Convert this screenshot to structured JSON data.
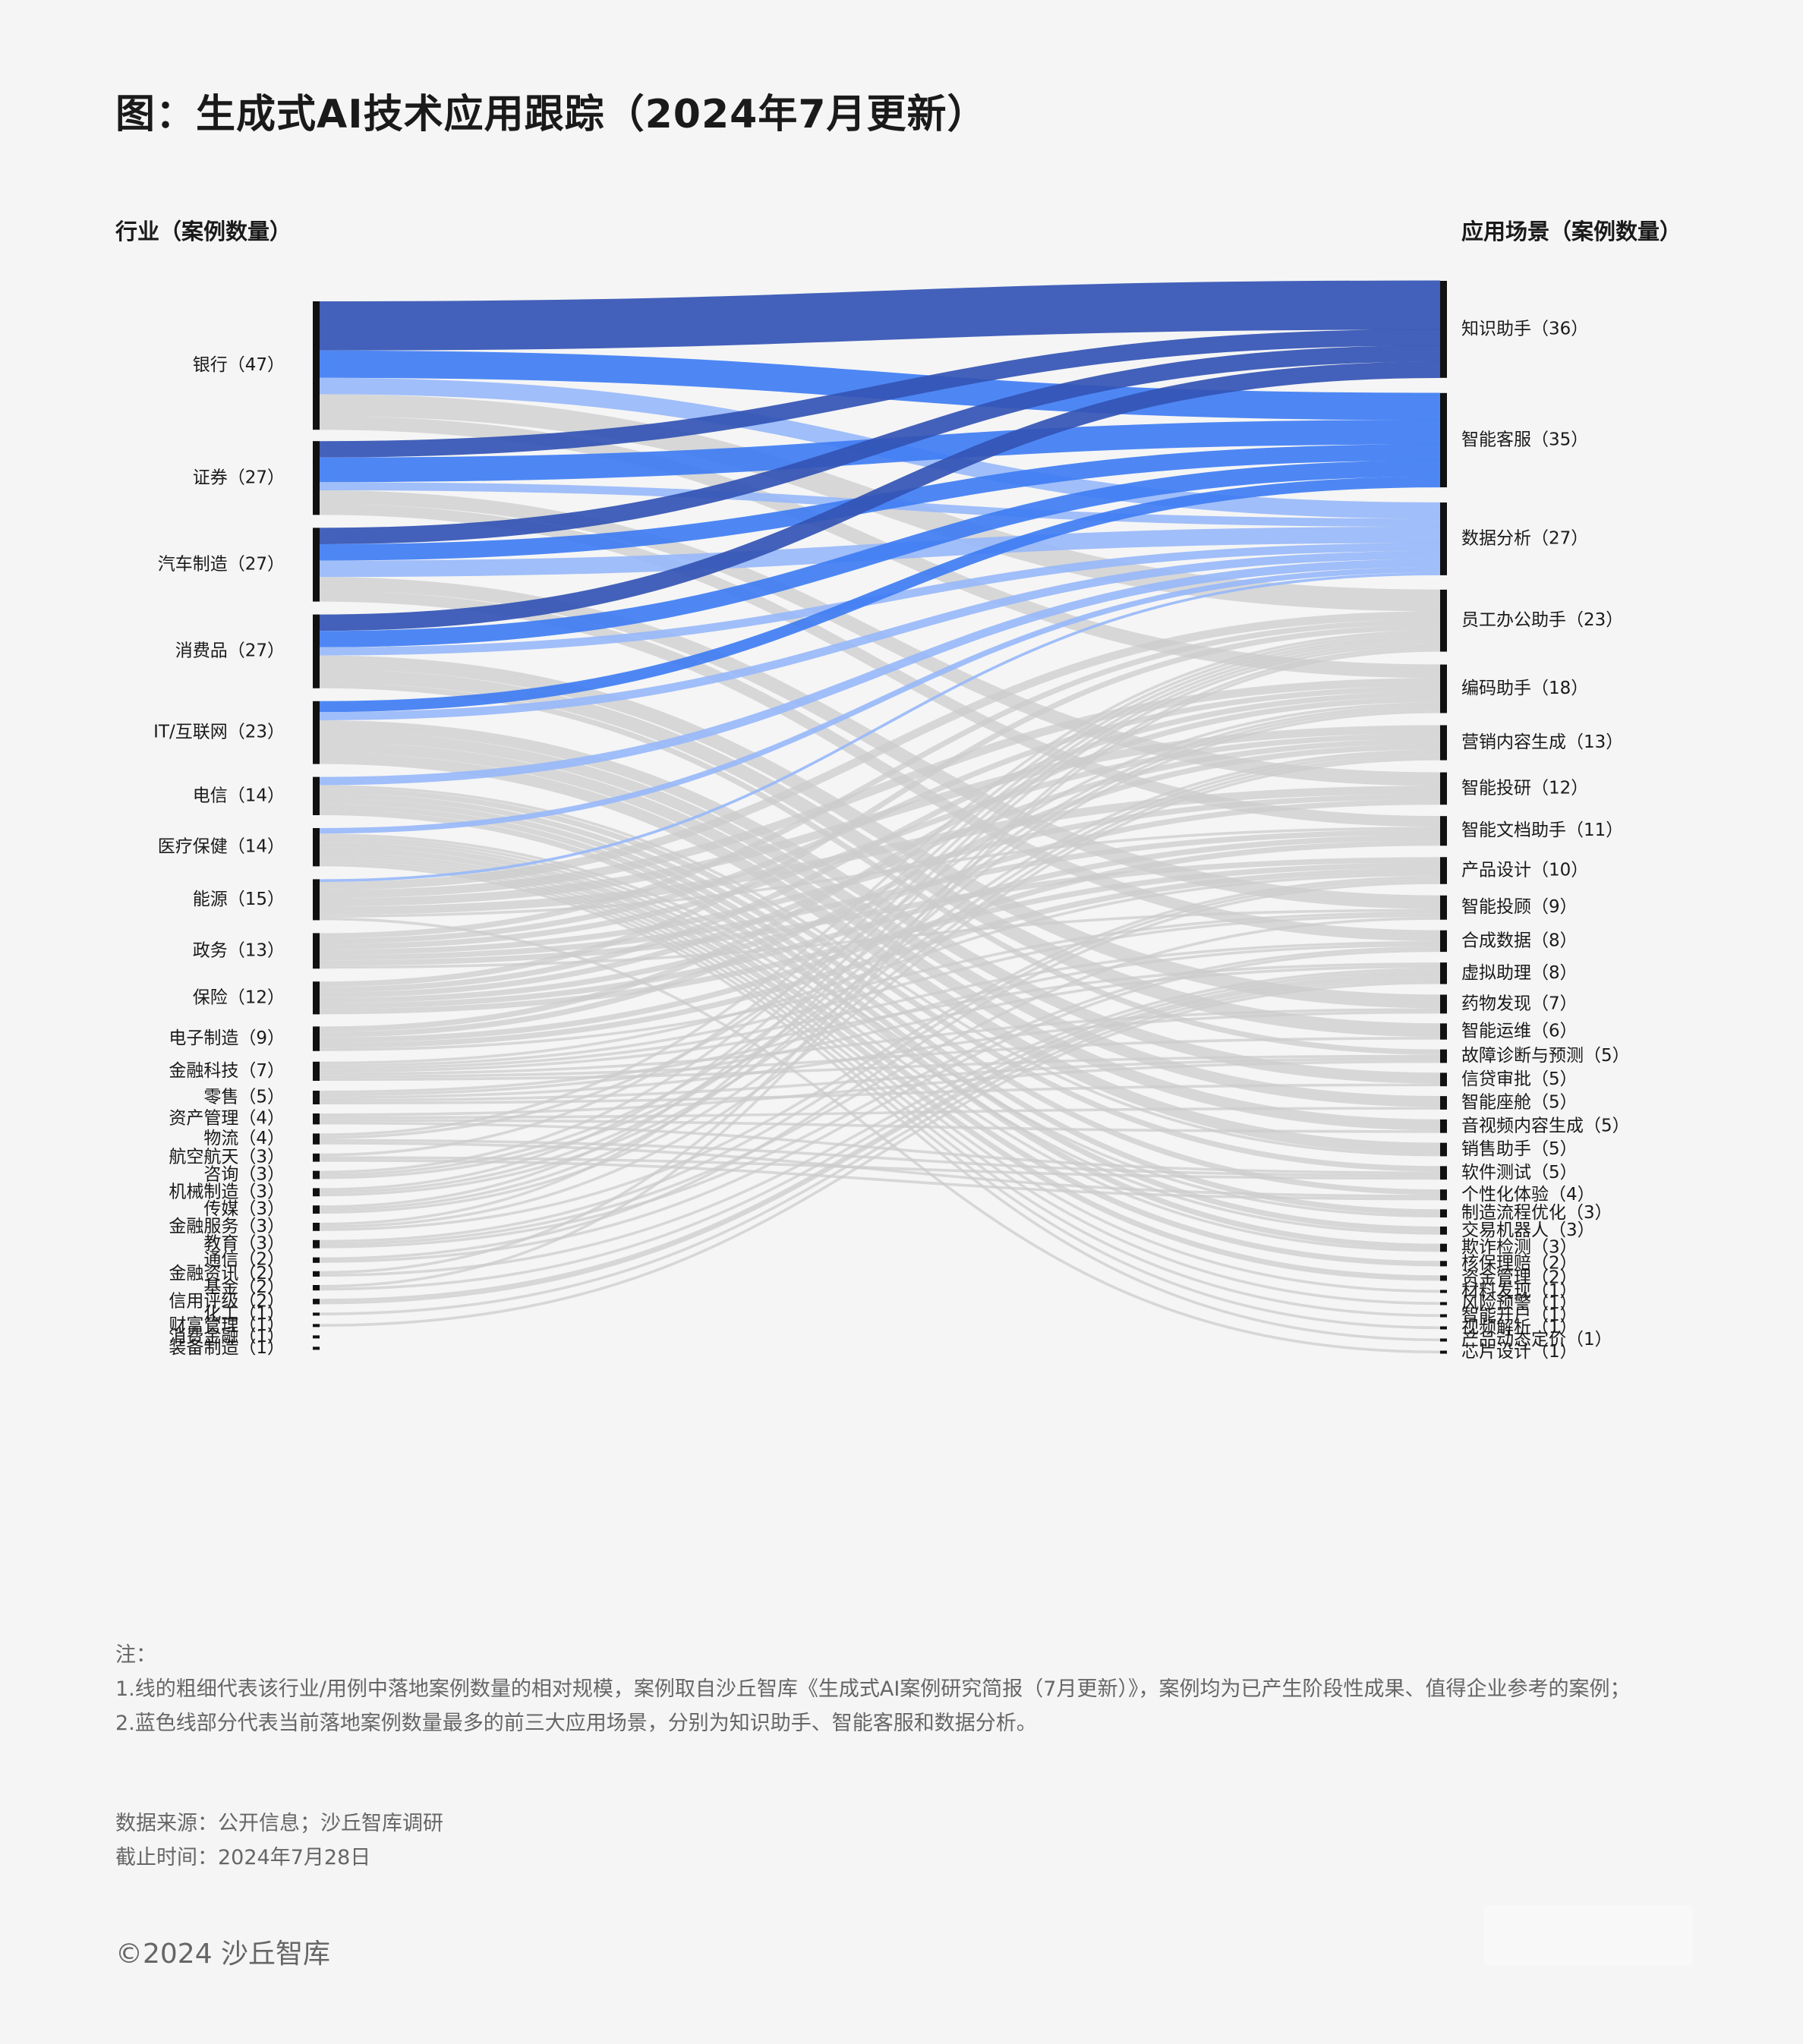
{
  "title": "图：生成式AI技术应用跟踪（2024年7月更新）",
  "left_header": "行业（案例数量）",
  "right_header": "应用场景（案例数量）",
  "chart_data": {
    "type": "sankey",
    "colors": {
      "知识助手": "#3354b4",
      "智能客服": "#3f7df3",
      "数据分析": "#98b9f8",
      "other": "#cccccc",
      "node": "#111111"
    },
    "left_nodes": [
      {
        "label": "银行（47）",
        "value": 47
      },
      {
        "label": "证券（27）",
        "value": 27
      },
      {
        "label": "汽车制造（27）",
        "value": 27
      },
      {
        "label": "消费品（27）",
        "value": 27
      },
      {
        "label": "IT/互联网（23）",
        "value": 23
      },
      {
        "label": "电信（14）",
        "value": 14
      },
      {
        "label": "医疗保健（14）",
        "value": 14
      },
      {
        "label": "能源（15）",
        "value": 15
      },
      {
        "label": "政务（13）",
        "value": 13
      },
      {
        "label": "保险（12）",
        "value": 12
      },
      {
        "label": "电子制造（9）",
        "value": 9
      },
      {
        "label": "金融科技（7）",
        "value": 7
      },
      {
        "label": "零售（5）",
        "value": 5
      },
      {
        "label": "资产管理（4）",
        "value": 4
      },
      {
        "label": "物流（4）",
        "value": 4
      },
      {
        "label": "航空航天（3）",
        "value": 3
      },
      {
        "label": "咨询（3）",
        "value": 3
      },
      {
        "label": "机械制造（3）",
        "value": 3
      },
      {
        "label": "传媒（3）",
        "value": 3
      },
      {
        "label": "金融服务（3）",
        "value": 3
      },
      {
        "label": "教育（3）",
        "value": 3
      },
      {
        "label": "通信（2）",
        "value": 2
      },
      {
        "label": "金融资讯（2）",
        "value": 2
      },
      {
        "label": "基金（2）",
        "value": 2
      },
      {
        "label": "信用评级（2）",
        "value": 2
      },
      {
        "label": "化工（1）",
        "value": 1
      },
      {
        "label": "财富管理（1）",
        "value": 1
      },
      {
        "label": "消费金融（1）",
        "value": 1
      },
      {
        "label": "装备制造（1）",
        "value": 1
      }
    ],
    "right_nodes": [
      {
        "label": "知识助手（36）",
        "value": 36
      },
      {
        "label": "智能客服（35）",
        "value": 35
      },
      {
        "label": "数据分析（27）",
        "value": 27
      },
      {
        "label": "员工办公助手（23）",
        "value": 23
      },
      {
        "label": "编码助手（18）",
        "value": 18
      },
      {
        "label": "营销内容生成（13）",
        "value": 13
      },
      {
        "label": "智能投研（12）",
        "value": 12
      },
      {
        "label": "智能文档助手（11）",
        "value": 11
      },
      {
        "label": "产品设计（10）",
        "value": 10
      },
      {
        "label": "智能投顾（9）",
        "value": 9
      },
      {
        "label": "合成数据（8）",
        "value": 8
      },
      {
        "label": "虚拟助理（8）",
        "value": 8
      },
      {
        "label": "药物发现（7）",
        "value": 7
      },
      {
        "label": "智能运维（6）",
        "value": 6
      },
      {
        "label": "故障诊断与预测（5）",
        "value": 5
      },
      {
        "label": "信贷审批（5）",
        "value": 5
      },
      {
        "label": "智能座舱（5）",
        "value": 5
      },
      {
        "label": "音视频内容生成（5）",
        "value": 5
      },
      {
        "label": "销售助手（5）",
        "value": 5
      },
      {
        "label": "软件测试（5）",
        "value": 5
      },
      {
        "label": "个性化体验（4）",
        "value": 4
      },
      {
        "label": "制造流程优化（3）",
        "value": 3
      },
      {
        "label": "交易机器人（3）",
        "value": 3
      },
      {
        "label": "欺诈检测（3）",
        "value": 3
      },
      {
        "label": "核保理赔（2）",
        "value": 2
      },
      {
        "label": "资金管理（2）",
        "value": 2
      },
      {
        "label": "材料发现（1）",
        "value": 1
      },
      {
        "label": "风险预警（1）",
        "value": 1
      },
      {
        "label": "智能开户（1）",
        "value": 1
      },
      {
        "label": "视频解析（1）",
        "value": 1
      },
      {
        "label": "产品动态定价（1）",
        "value": 1
      },
      {
        "label": "芯片设计（1）",
        "value": 1
      }
    ]
  },
  "notes": {
    "heading": "注：",
    "line1": "1.线的粗细代表该行业/用例中落地案例数量的相对规模，案例取自沙丘智库《生成式AI案例研究简报（7月更新）》，案例均为已产生阶段性成果、值得企业参考的案例；",
    "line2": "2.蓝色线部分代表当前落地案例数量最多的前三大应用场景，分别为知识助手、智能客服和数据分析。"
  },
  "source": {
    "data_source": "数据来源：公开信息；沙丘智库调研",
    "cutoff": "截止时间：2024年7月28日"
  },
  "copyright": "©2024 沙丘智库"
}
